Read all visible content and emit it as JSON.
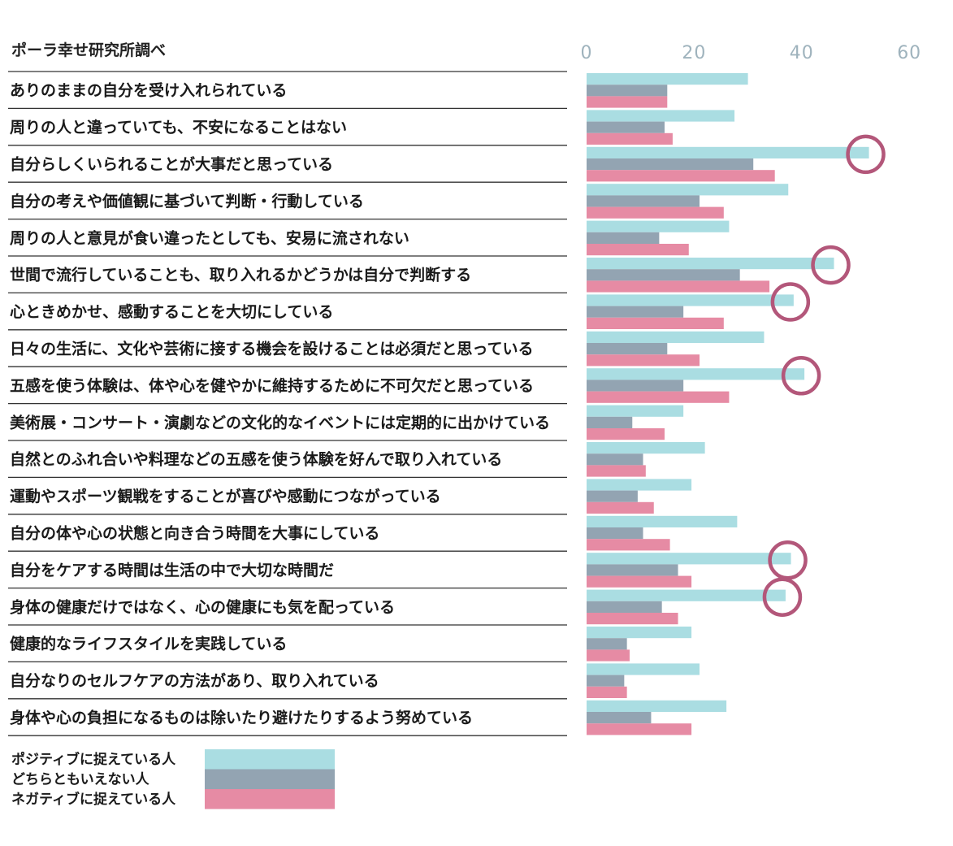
{
  "chart_data": {
    "type": "bar",
    "orientation": "horizontal",
    "title": "",
    "source_note": "ポーラ幸せ研究所調べ",
    "xlim": [
      0,
      60
    ],
    "xticks": [
      "0",
      "20",
      "40",
      "60"
    ],
    "categories": [
      "ありのままの自分を受け入れられている",
      "周りの人と違っていても、不安になることはない",
      "自分らしくいられることが大事だと思っている",
      "自分の考えや価値観に基づいて判断・行動している",
      "周りの人と意見が食い違ったとしても、安易に流されない",
      "世間で流行していることも、取り入れるかどうかは自分で判断する",
      "心ときめかせ、感動することを大切にしている",
      "日々の生活に、文化や芸術に接する機会を設けることは必須だと思っている",
      "五感を使う体験は、体や心を健やかに維持するために不可欠だと思っている",
      "美術展・コンサート・演劇などの文化的なイベントには定期的に出かけている",
      "自然とのふれ合いや料理などの五感を使う体験を好んで取り入れている",
      "運動やスポーツ観戦をすることが喜びや感動につながっている",
      "自分の体や心の状態と向き合う時間を大事にしている",
      "自分をケアする時間は生活の中で大切な時間だ",
      "身体の健康だけではなく、心の健康にも気を配っている",
      "健康的なライフスタイルを実践している",
      "自分なりのセルフケアの方法があり、取り入れている",
      "身体や心の負担になるものは除いたり避けたりするよう努めている"
    ],
    "series": [
      {
        "name": "ポジティブに捉えている人",
        "color": "#aadde2",
        "values": [
          30,
          27.5,
          52.5,
          37.5,
          26.5,
          46,
          38.5,
          33,
          40.5,
          18,
          22,
          19.5,
          28,
          38,
          37,
          19.5,
          21,
          26
        ]
      },
      {
        "name": "どちらともいえない人",
        "color": "#93a4b2",
        "values": [
          15,
          14.5,
          31,
          21,
          13.5,
          28.5,
          18,
          15,
          18,
          8.5,
          10.5,
          9.5,
          10.5,
          17,
          14,
          7.5,
          7,
          12
        ]
      },
      {
        "name": "ネガティブに捉えている人",
        "color": "#e68ba4",
        "values": [
          15,
          16,
          35,
          25.5,
          19,
          34,
          25.5,
          21,
          26.5,
          14.5,
          11,
          12.5,
          15.5,
          19.5,
          17,
          8,
          7.5,
          19.5
        ]
      }
    ],
    "highlighted": [
      2,
      5,
      6,
      8,
      13,
      14
    ],
    "highlight_color": "#b3577a",
    "grid": false,
    "legend": "bottom-left"
  }
}
